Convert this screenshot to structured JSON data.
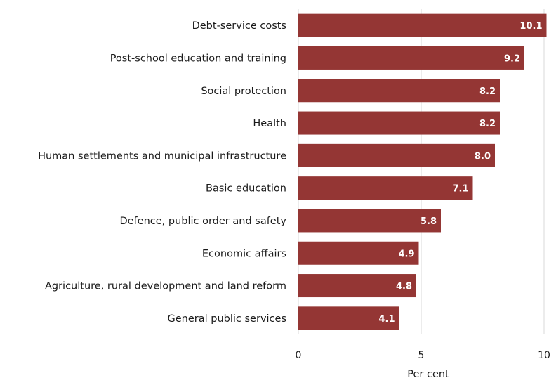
{
  "chart_data": {
    "type": "bar",
    "orientation": "horizontal",
    "categories": [
      "Debt-service costs",
      "Post-school education and training",
      "Social protection",
      "Health",
      "Human settlements and municipal infrastructure",
      "Basic education",
      "Defence, public order and safety",
      "Economic affairs",
      "Agriculture, rural development and land reform",
      "General public services"
    ],
    "values": [
      10.1,
      9.2,
      8.2,
      8.2,
      8.0,
      7.1,
      5.8,
      4.9,
      4.8,
      4.1
    ],
    "value_labels": [
      "10.1",
      "9.2",
      "8.2",
      "8.2",
      "8.0",
      "7.1",
      "5.8",
      "4.9",
      "4.8",
      "4.1"
    ],
    "xlabel": "Per cent",
    "xlim": [
      0,
      10
    ],
    "xticks": [
      "0",
      "5",
      "10"
    ],
    "grid": true,
    "bar_color": "#943634",
    "grid_color": "#d9d9d9"
  }
}
